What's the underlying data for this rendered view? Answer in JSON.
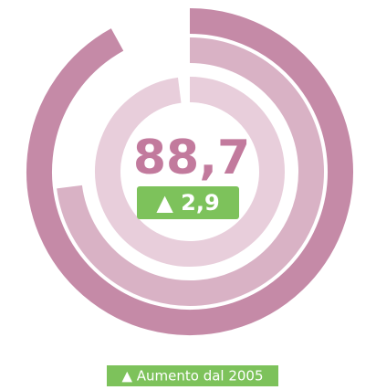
{
  "chart_data": {
    "type": "radial_bar",
    "series": [
      {
        "color": "#c58aa7",
        "values": [
          92
        ]
      },
      {
        "color": "#d9b2c5",
        "values": [
          73
        ]
      },
      {
        "color": "#e8cedb",
        "values": [
          98
        ]
      }
    ],
    "ylim": [
      0,
      100
    ],
    "center_value": "88,7",
    "change_label": "▲ 2,9",
    "footnote": "▲ Aumento dal 2005"
  }
}
